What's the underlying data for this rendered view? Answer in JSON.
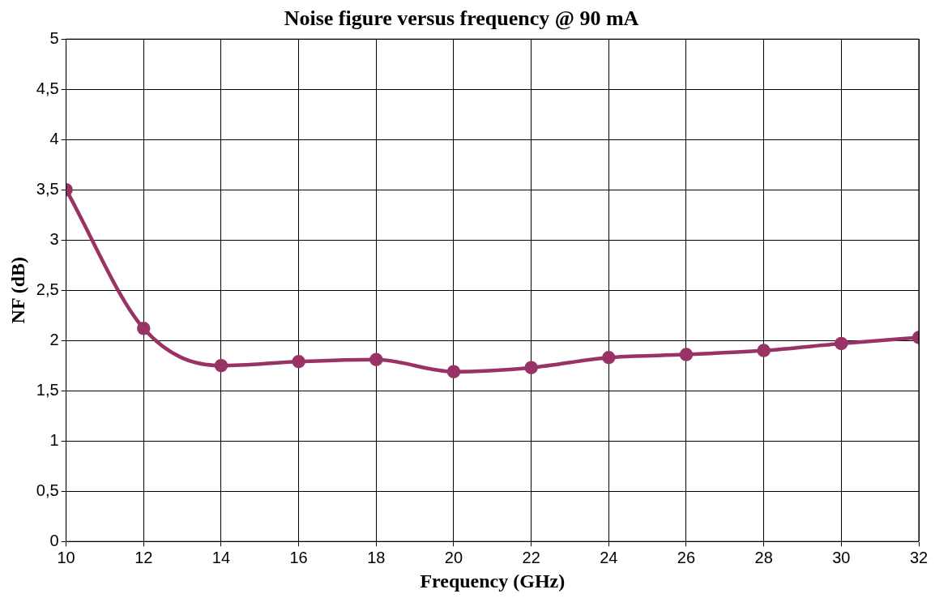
{
  "chart_data": {
    "type": "line",
    "title": "Noise figure versus frequency @ 90 mA",
    "xlabel": "Frequency (GHz)",
    "ylabel": "NF (dB)",
    "x": [
      10,
      12,
      14,
      16,
      18,
      20,
      22,
      24,
      26,
      28,
      30,
      32
    ],
    "series": [
      {
        "color": "#993366",
        "values": [
          3.5,
          2.12,
          1.75,
          1.79,
          1.81,
          1.69,
          1.73,
          1.83,
          1.86,
          1.9,
          1.97,
          2.03
        ]
      }
    ],
    "xlim": [
      10,
      32
    ],
    "xticks": [
      10,
      12,
      14,
      16,
      18,
      20,
      22,
      24,
      26,
      28,
      30,
      32
    ],
    "ylim": [
      0,
      5
    ],
    "yticks": [
      0,
      {
        "value": 0.5,
        "label": "0,5"
      },
      1,
      {
        "value": 1.5,
        "label": "1,5"
      },
      2,
      {
        "value": 2.5,
        "label": "2,5"
      },
      3,
      {
        "value": 3.5,
        "label": "3,5"
      },
      4,
      {
        "value": 4.5,
        "label": "4,5"
      },
      5
    ],
    "grid": true,
    "marker": "circle",
    "line_style": "solid",
    "legend": false
  }
}
